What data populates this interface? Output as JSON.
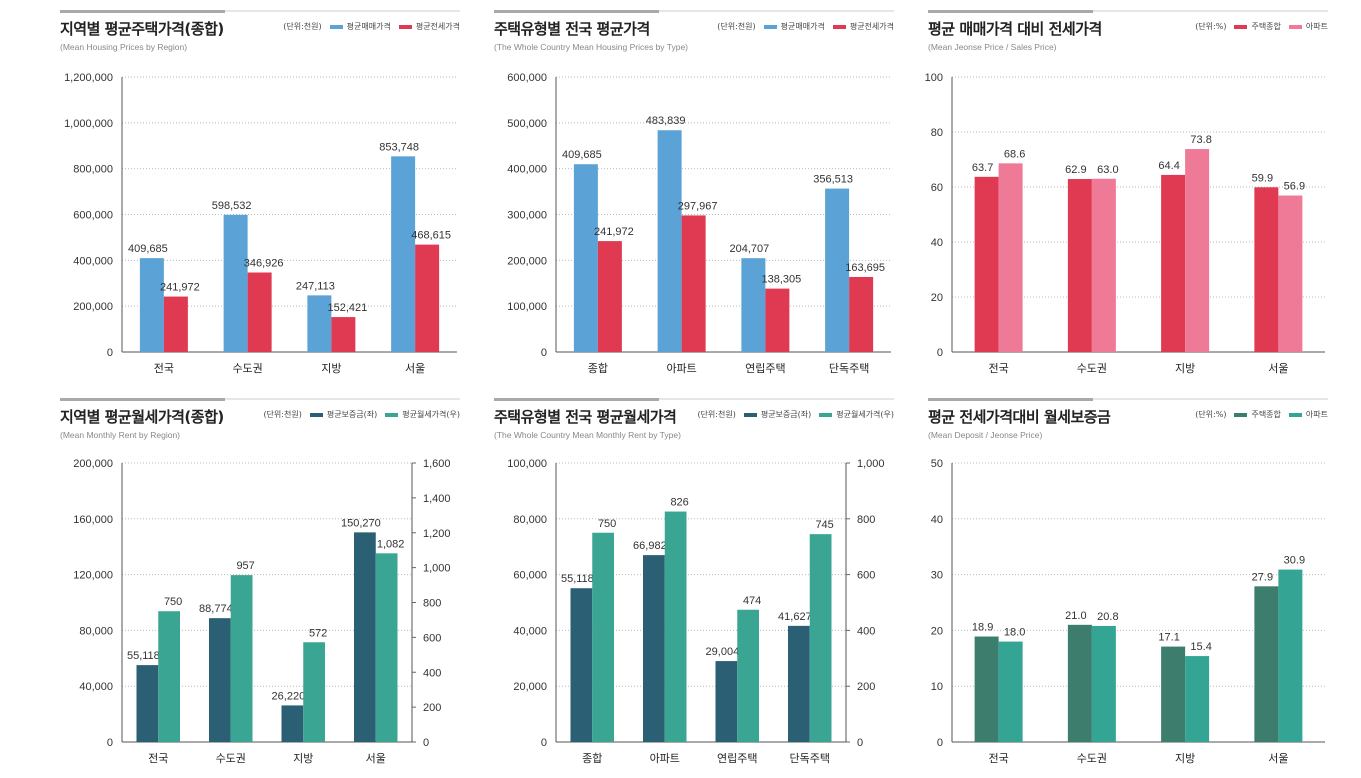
{
  "chart_data": [
    {
      "type": "bar",
      "title": "지역별 평균주택가격(종합)",
      "subtitle": "(Mean Housing Prices by Region)",
      "unit": "(단위:천원)",
      "categories": [
        "전국",
        "수도권",
        "지방",
        "서울"
      ],
      "series": [
        {
          "name": "평균매매가격",
          "color": "#5ba3d6",
          "values": [
            409685,
            598532,
            247113,
            853748
          ]
        },
        {
          "name": "평균전세가격",
          "color": "#e03a52",
          "values": [
            241972,
            346926,
            152421,
            468615
          ]
        }
      ],
      "ylim": [
        0,
        1200000
      ],
      "yticks": [
        0,
        200000,
        400000,
        600000,
        800000,
        1000000,
        1200000
      ],
      "grid": true,
      "legend": "top-right"
    },
    {
      "type": "bar",
      "title": "주택유형별 전국 평균가격",
      "subtitle": "(The Whole Country Mean Housing Prices by Type)",
      "unit": "(단위:천원)",
      "categories": [
        "종합",
        "아파트",
        "연립주택",
        "단독주택"
      ],
      "series": [
        {
          "name": "평균매매가격",
          "color": "#5ba3d6",
          "values": [
            409685,
            483839,
            204707,
            356513
          ]
        },
        {
          "name": "평균전세가격",
          "color": "#e03a52",
          "values": [
            241972,
            297967,
            138305,
            163695
          ]
        }
      ],
      "ylim": [
        0,
        600000
      ],
      "yticks": [
        0,
        100000,
        200000,
        300000,
        400000,
        500000,
        600000
      ],
      "grid": true,
      "legend": "top-right"
    },
    {
      "type": "bar",
      "title": "평균 매매가격 대비 전세가격",
      "subtitle": "(Mean Jeonse Price / Sales Price)",
      "unit": "(단위:%)",
      "categories": [
        "전국",
        "수도권",
        "지방",
        "서울"
      ],
      "series": [
        {
          "name": "주택종합",
          "color": "#e03a52",
          "values": [
            63.7,
            62.9,
            64.4,
            59.9
          ]
        },
        {
          "name": "아파트",
          "color": "#ef7a98",
          "values": [
            68.6,
            63.0,
            73.8,
            56.9
          ]
        }
      ],
      "ylim": [
        0,
        100
      ],
      "yticks": [
        0,
        20,
        40,
        60,
        80,
        100
      ],
      "grid": true,
      "legend": "top-right",
      "decimals": 1
    },
    {
      "type": "bar",
      "title": "지역별 평균월세가격(종합)",
      "subtitle": "(Mean Monthly Rent by Region)",
      "unit": "(단위:천원)",
      "categories": [
        "전국",
        "수도권",
        "지방",
        "서울"
      ],
      "series": [
        {
          "name": "평균보증금(좌)",
          "color": "#2b5f73",
          "axis": "left",
          "values": [
            55118,
            88774,
            26220,
            150270
          ]
        },
        {
          "name": "평균월세가격(우)",
          "color": "#3aa592",
          "axis": "right",
          "values": [
            750,
            957,
            572,
            1082
          ]
        }
      ],
      "ylim": [
        0,
        200000
      ],
      "yticks": [
        0,
        40000,
        80000,
        120000,
        160000,
        200000
      ],
      "y2lim": [
        0,
        1600
      ],
      "y2ticks": [
        0,
        200,
        400,
        600,
        800,
        1000,
        1200,
        1400,
        1600
      ],
      "grid": true,
      "legend": "top-right"
    },
    {
      "type": "bar",
      "title": "주택유형별 전국 평균월세가격",
      "subtitle": "(The Whole Country Mean Monthly Rent by Type)",
      "unit": "(단위:천원)",
      "categories": [
        "종합",
        "아파트",
        "연립주택",
        "단독주택"
      ],
      "series": [
        {
          "name": "평균보증금(좌)",
          "color": "#2b5f73",
          "axis": "left",
          "values": [
            55118,
            66982,
            29004,
            41627
          ]
        },
        {
          "name": "평균월세가격(우)",
          "color": "#3aa592",
          "axis": "right",
          "values": [
            750,
            826,
            474,
            745
          ]
        }
      ],
      "ylim": [
        0,
        100000
      ],
      "yticks": [
        0,
        20000,
        40000,
        60000,
        80000,
        100000
      ],
      "y2lim": [
        0,
        1000
      ],
      "y2ticks": [
        0,
        200,
        400,
        600,
        800,
        1000
      ],
      "grid": true,
      "legend": "top-right"
    },
    {
      "type": "bar",
      "title": "평균 전세가격대비 월세보증금",
      "subtitle": "(Mean Deposit / Jeonse Price)",
      "unit": "(단위:%)",
      "categories": [
        "전국",
        "수도권",
        "지방",
        "서울"
      ],
      "series": [
        {
          "name": "주택종합",
          "color": "#3d7d6e",
          "values": [
            18.9,
            21.0,
            17.1,
            27.9
          ]
        },
        {
          "name": "아파트",
          "color": "#34a595",
          "values": [
            18.0,
            20.8,
            15.4,
            30.9
          ]
        }
      ],
      "ylim": [
        0,
        50
      ],
      "yticks": [
        0,
        10,
        20,
        30,
        40,
        50
      ],
      "grid": true,
      "legend": "top-right",
      "decimals": 1
    }
  ]
}
